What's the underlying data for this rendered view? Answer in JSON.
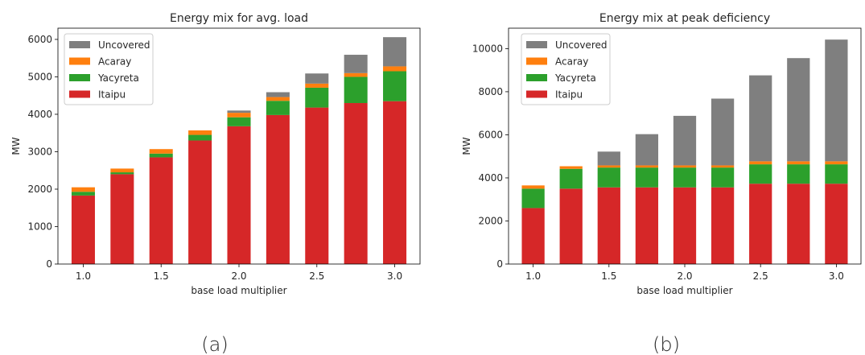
{
  "chart_data": [
    {
      "type": "bar",
      "stacked": true,
      "title": "Energy mix for avg. load",
      "xlabel": "base load multiplier",
      "ylabel": "MW",
      "caption": "(a)",
      "x": [
        1.0,
        1.25,
        1.5,
        1.75,
        2.0,
        2.25,
        2.5,
        2.75,
        3.0
      ],
      "xticks": [
        "1.0",
        "1.5",
        "2.0",
        "2.5",
        "3.0"
      ],
      "xtick_values": [
        1.0,
        1.5,
        2.0,
        2.5,
        3.0
      ],
      "ylim": [
        0,
        6300
      ],
      "yticks": [
        "0",
        "1000",
        "2000",
        "3000",
        "4000",
        "5000",
        "6000"
      ],
      "ytick_values": [
        0,
        1000,
        2000,
        3000,
        4000,
        5000,
        6000
      ],
      "legend_position": "top-left",
      "series": [
        {
          "name": "Itaipu",
          "color": "#d62728",
          "values": [
            1830,
            2400,
            2850,
            3300,
            3680,
            3980,
            4180,
            4300,
            4350
          ]
        },
        {
          "name": "Yacyreta",
          "color": "#2ca02c",
          "values": [
            100,
            50,
            100,
            150,
            240,
            380,
            530,
            700,
            800
          ]
        },
        {
          "name": "Acaray",
          "color": "#ff7f0e",
          "values": [
            120,
            100,
            120,
            120,
            120,
            100,
            110,
            100,
            130
          ]
        },
        {
          "name": "Uncovered",
          "color": "#7f7f7f",
          "values": [
            0,
            0,
            0,
            0,
            60,
            130,
            270,
            490,
            780
          ]
        }
      ]
    },
    {
      "type": "bar",
      "stacked": true,
      "title": "Energy mix at peak deficiency",
      "xlabel": "base load multiplier",
      "ylabel": "MW",
      "caption": "(b)",
      "x": [
        1.0,
        1.25,
        1.5,
        1.75,
        2.0,
        2.25,
        2.5,
        2.75,
        3.0
      ],
      "xticks": [
        "1.0",
        "1.5",
        "2.0",
        "2.5",
        "3.0"
      ],
      "xtick_values": [
        1.0,
        1.5,
        2.0,
        2.5,
        3.0
      ],
      "ylim": [
        0,
        10950
      ],
      "yticks": [
        "0",
        "2000",
        "4000",
        "6000",
        "8000",
        "10000"
      ],
      "ytick_values": [
        0,
        2000,
        4000,
        6000,
        8000,
        10000
      ],
      "legend_position": "top-left",
      "series": [
        {
          "name": "Itaipu",
          "color": "#d62728",
          "values": [
            2600,
            3500,
            3560,
            3560,
            3560,
            3560,
            3730,
            3730,
            3730
          ]
        },
        {
          "name": "Yacyreta",
          "color": "#2ca02c",
          "values": [
            900,
            920,
            920,
            920,
            920,
            920,
            900,
            900,
            900
          ]
        },
        {
          "name": "Acaray",
          "color": "#ff7f0e",
          "values": [
            150,
            120,
            100,
            100,
            100,
            100,
            140,
            140,
            140
          ]
        },
        {
          "name": "Uncovered",
          "color": "#7f7f7f",
          "values": [
            0,
            0,
            640,
            1450,
            2300,
            3100,
            3990,
            4790,
            5650
          ]
        }
      ]
    }
  ]
}
